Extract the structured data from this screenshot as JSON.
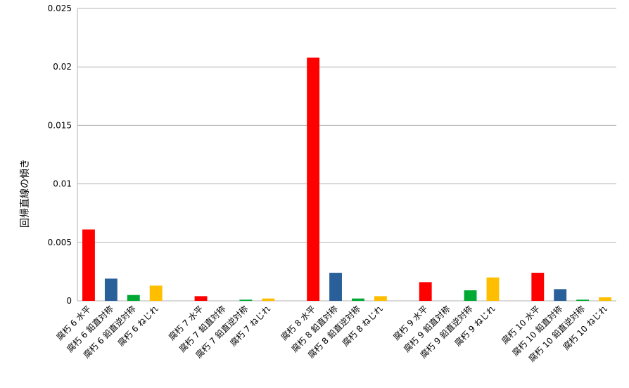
{
  "chart_data": {
    "type": "bar",
    "y_label": "回帰直線の傾き",
    "categories": [
      "腐朽 6 水平",
      "腐朽 6 鉛直対称",
      "腐朽 6 鉛直逆対称",
      "腐朽 6 ねじれ",
      null,
      "腐朽 7 水平",
      "腐朽 7 鉛直対称",
      "腐朽 7 鉛直逆対称",
      "腐朽 7 ねじれ",
      null,
      "腐朽 8 水平",
      "腐朽 8 鉛直対称",
      "腐朽 8 鉛直逆対称",
      "腐朽 8 ねじれ",
      null,
      "腐朽 9 水平",
      "腐朽 9 鉛直対称",
      "腐朽 9 鉛直逆対称",
      "腐朽 9 ねじれ",
      null,
      "腐朽 10 水平",
      "腐朽 10 鉛直対称",
      "腐朽 10 鉛直逆対称",
      "腐朽 10 ねじれ"
    ],
    "values": [
      0.0061,
      0.0019,
      0.0005,
      0.0013,
      null,
      0.0004,
      0,
      0.0001,
      0.0002,
      null,
      0.0208,
      0.0024,
      0.0002,
      0.0004,
      null,
      0.0016,
      0,
      0.0009,
      0.002,
      null,
      0.0024,
      0.001,
      0.0001,
      0.0003
    ],
    "colors": [
      "#ff0000",
      "#2a6099",
      "#00a933",
      "#ffbf00"
    ],
    "ylim": [
      0,
      0.025
    ],
    "yticks": [
      0,
      0.005,
      0.01,
      0.015,
      0.02,
      0.025
    ],
    "grid": true
  }
}
